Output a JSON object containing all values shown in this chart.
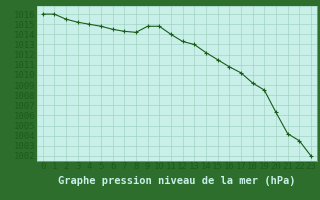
{
  "x": [
    0,
    1,
    2,
    3,
    4,
    5,
    6,
    7,
    8,
    9,
    10,
    11,
    12,
    13,
    14,
    15,
    16,
    17,
    18,
    19,
    20,
    21,
    22,
    23
  ],
  "y": [
    1016.0,
    1016.0,
    1015.5,
    1015.2,
    1015.0,
    1014.8,
    1014.5,
    1014.3,
    1014.2,
    1014.8,
    1014.8,
    1014.0,
    1013.3,
    1013.0,
    1012.2,
    1011.5,
    1010.8,
    1010.2,
    1009.2,
    1008.5,
    1006.3,
    1004.2,
    1003.5,
    1002.0
  ],
  "line_color": "#1a5c1a",
  "marker": "+",
  "marker_color": "#1a5c1a",
  "bg_color": "#c8f0e8",
  "plot_bg_color": "#c8f0e8",
  "bottom_bg_color": "#2d6e2d",
  "grid_color": "#99ccbb",
  "tick_color": "#1a5c1a",
  "xlabel": "Graphe pression niveau de la mer (hPa)",
  "xlabel_color": "#c8f0e8",
  "xtick_labels": [
    "0",
    "1",
    "2",
    "3",
    "4",
    "5",
    "6",
    "7",
    "8",
    "9",
    "10",
    "11",
    "12",
    "13",
    "14",
    "15",
    "16",
    "17",
    "18",
    "19",
    "20",
    "21",
    "22",
    "23"
  ],
  "ytick_min": 1002,
  "ytick_max": 1016,
  "ytick_step": 1,
  "ylim_min": 1001.5,
  "ylim_max": 1016.8,
  "font_size_ticks": 6.5,
  "font_size_xlabel": 7.5,
  "linewidth": 0.8,
  "markersize": 3.5
}
